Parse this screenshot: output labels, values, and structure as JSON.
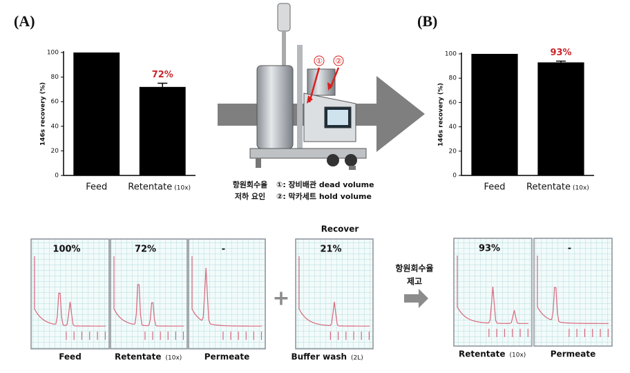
{
  "chart_data": [
    {
      "type": "bar",
      "panel_label": "(A)",
      "ylabel": "146s recovery (%)",
      "categories": [
        "Feed",
        "Retentate"
      ],
      "category_notes": [
        null,
        "(10x)"
      ],
      "values": [
        100,
        72
      ],
      "errors": [
        null,
        3
      ],
      "value_labels": [
        null,
        "72%"
      ],
      "color": "#000000",
      "value_label_color": "#c8262b",
      "ylim": [
        0,
        100
      ],
      "yticks": [
        0,
        20,
        40,
        60,
        80,
        100
      ]
    },
    {
      "type": "bar",
      "panel_label": "(B)",
      "ylabel": "146s recovery (%)",
      "categories": [
        "Feed",
        "Retentate"
      ],
      "category_notes": [
        null,
        "(10x)"
      ],
      "values": [
        100,
        93
      ],
      "errors": [
        null,
        1
      ],
      "value_labels": [
        null,
        "93%"
      ],
      "color": "#000000",
      "value_label_color": "#c8262b",
      "ylim": [
        0,
        100
      ],
      "yticks": [
        0,
        20,
        40,
        60,
        80,
        100
      ]
    }
  ],
  "device": {
    "markers": [
      "①",
      "②"
    ],
    "cause_lines": [
      "항원회수율",
      "저하 요인"
    ],
    "factors": [
      "①: 장비배관 dead volume",
      "②: 막카세트 hold volume"
    ]
  },
  "chromatograms": {
    "before": [
      {
        "value_label": "100%",
        "label": "Feed",
        "note": null
      },
      {
        "value_label": "72%",
        "label": "Retentate",
        "note": "(10x)"
      },
      {
        "value_label": "-",
        "label": "Permeate",
        "note": null
      }
    ],
    "recover_title": "Recover",
    "recover": [
      {
        "value_label": "21%",
        "label": "Buffer wash",
        "note": "(2L)"
      }
    ],
    "improve_lines": [
      "항원회수율",
      "제고"
    ],
    "after": [
      {
        "value_label": "93%",
        "label": "Retentate",
        "note": "(10x)"
      },
      {
        "value_label": "-",
        "label": "Permeate",
        "note": null
      }
    ]
  }
}
